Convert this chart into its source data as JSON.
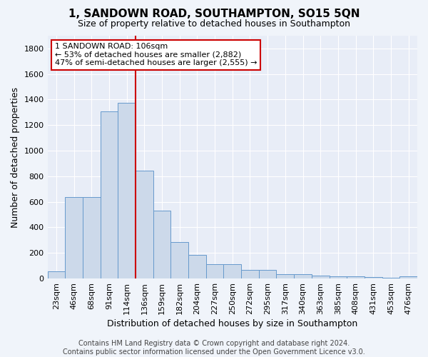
{
  "title": "1, SANDOWN ROAD, SOUTHAMPTON, SO15 5QN",
  "subtitle": "Size of property relative to detached houses in Southampton",
  "xlabel": "Distribution of detached houses by size in Southampton",
  "ylabel": "Number of detached properties",
  "categories": [
    "23sqm",
    "46sqm",
    "68sqm",
    "91sqm",
    "114sqm",
    "136sqm",
    "159sqm",
    "182sqm",
    "204sqm",
    "227sqm",
    "250sqm",
    "272sqm",
    "295sqm",
    "317sqm",
    "340sqm",
    "363sqm",
    "385sqm",
    "408sqm",
    "431sqm",
    "453sqm",
    "476sqm"
  ],
  "values": [
    55,
    635,
    635,
    1305,
    1375,
    845,
    530,
    285,
    185,
    110,
    110,
    65,
    65,
    35,
    35,
    20,
    15,
    15,
    10,
    5,
    15
  ],
  "bar_color": "#ccd9ea",
  "bar_edge_color": "#6699cc",
  "bar_width": 1.0,
  "vline_x": 4.5,
  "vline_color": "#cc0000",
  "annotation_text": "1 SANDOWN ROAD: 106sqm\n← 53% of detached houses are smaller (2,882)\n47% of semi-detached houses are larger (2,555) →",
  "annotation_box_color": "#ffffff",
  "annotation_box_edge_color": "#cc0000",
  "ylim": [
    0,
    1900
  ],
  "yticks": [
    0,
    200,
    400,
    600,
    800,
    1000,
    1200,
    1400,
    1600,
    1800
  ],
  "footnote": "Contains HM Land Registry data © Crown copyright and database right 2024.\nContains public sector information licensed under the Open Government Licence v3.0.",
  "bg_color": "#f0f4fa",
  "plot_bg_color": "#e8edf7",
  "grid_color": "#ffffff",
  "title_fontsize": 11,
  "subtitle_fontsize": 9,
  "xlabel_fontsize": 9,
  "ylabel_fontsize": 9,
  "tick_fontsize": 8,
  "footnote_fontsize": 7,
  "annotation_fontsize": 8
}
